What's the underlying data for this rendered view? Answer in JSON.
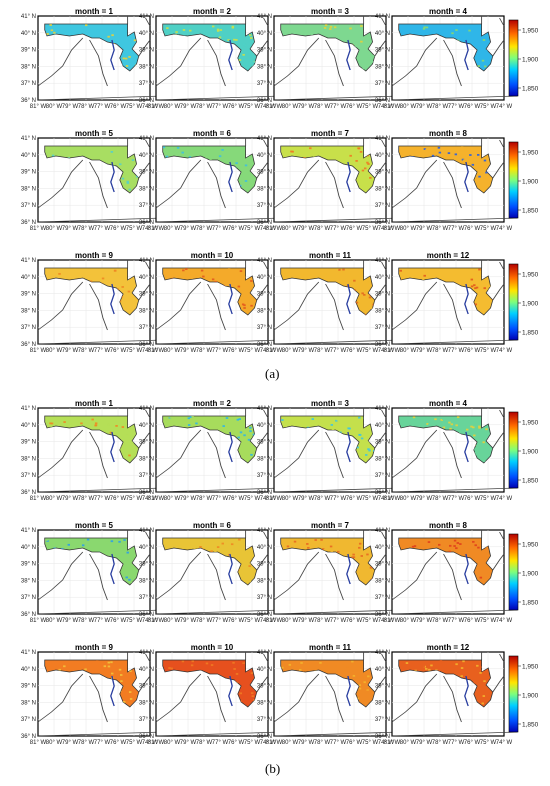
{
  "panels": [
    {
      "id": "a",
      "caption": "(a)",
      "title_prefix": "month = ",
      "lat_ticks": [
        "41° N",
        "40° N",
        "39° N",
        "38° N",
        "37° N",
        "36° N"
      ],
      "lon_ticks": [
        "81° W",
        "80° W",
        "79° W",
        "78° W",
        "77° W",
        "76° W",
        "75° W",
        "74° W"
      ],
      "colorbar": {
        "ticks": [
          "1,950",
          "1,900",
          "1,850"
        ]
      },
      "months": [
        {
          "title": "1",
          "dominant": "#3fc7e0",
          "accent": "#e8d23a",
          "fill": "low"
        },
        {
          "title": "2",
          "dominant": "#4fd0c5",
          "accent": "#c9e04a",
          "fill": "low"
        },
        {
          "title": "3",
          "dominant": "#7ed890",
          "accent": "#e6d23b",
          "fill": "low"
        },
        {
          "title": "4",
          "dominant": "#2fb6e8",
          "accent": "#8ad86f",
          "fill": "low"
        },
        {
          "title": "5",
          "dominant": "#a8de62",
          "accent": "#58d0c8",
          "fill": "full"
        },
        {
          "title": "6",
          "dominant": "#86d97a",
          "accent": "#3fbfe0",
          "fill": "full"
        },
        {
          "title": "7",
          "dominant": "#c8e04a",
          "accent": "#f07a22",
          "fill": "full"
        },
        {
          "title": "8",
          "dominant": "#f5b22c",
          "accent": "#2a5fe0",
          "fill": "full"
        },
        {
          "title": "9",
          "dominant": "#f3c23a",
          "accent": "#f08a24",
          "fill": "full"
        },
        {
          "title": "10",
          "dominant": "#f4aa2a",
          "accent": "#e35a1e",
          "fill": "full"
        },
        {
          "title": "11",
          "dominant": "#f2b82e",
          "accent": "#e36a20",
          "fill": "full"
        },
        {
          "title": "12",
          "dominant": "#f4bc30",
          "accent": "#e25a1d",
          "fill": "full"
        }
      ]
    },
    {
      "id": "b",
      "caption": "(b)",
      "title_prefix": "month = ",
      "lat_ticks": [
        "41° N",
        "40° N",
        "39° N",
        "38° N",
        "37° N",
        "36° N"
      ],
      "lon_ticks": [
        "81° W",
        "80° W",
        "79° W",
        "78° W",
        "77° W",
        "76° W",
        "75° W",
        "74° W"
      ],
      "colorbar": {
        "ticks": [
          "1,950",
          "1,900",
          "1,850"
        ]
      },
      "months": [
        {
          "title": "1",
          "dominant": "#b5df57",
          "accent": "#f08a24",
          "fill": "full"
        },
        {
          "title": "2",
          "dominant": "#a7dc5c",
          "accent": "#2fb6e8",
          "fill": "full"
        },
        {
          "title": "3",
          "dominant": "#c4e04c",
          "accent": "#3fc7e0",
          "fill": "full"
        },
        {
          "title": "4",
          "dominant": "#68d49a",
          "accent": "#e8d23a",
          "fill": "full"
        },
        {
          "title": "5",
          "dominant": "#8ad86f",
          "accent": "#2fa0e8",
          "fill": "full"
        },
        {
          "title": "6",
          "dominant": "#e8c436",
          "accent": "#f08a24",
          "fill": "full"
        },
        {
          "title": "7",
          "dominant": "#f0b830",
          "accent": "#e86a22",
          "fill": "full"
        },
        {
          "title": "8",
          "dominant": "#f08a24",
          "accent": "#e0401c",
          "fill": "full"
        },
        {
          "title": "9",
          "dominant": "#f27c22",
          "accent": "#f3c23a",
          "fill": "full"
        },
        {
          "title": "10",
          "dominant": "#e6501e",
          "accent": "#f07a22",
          "fill": "full"
        },
        {
          "title": "11",
          "dominant": "#f08a24",
          "accent": "#f3b22c",
          "fill": "full"
        },
        {
          "title": "12",
          "dominant": "#e8601e",
          "accent": "#f3b22c",
          "fill": "full"
        }
      ]
    }
  ]
}
